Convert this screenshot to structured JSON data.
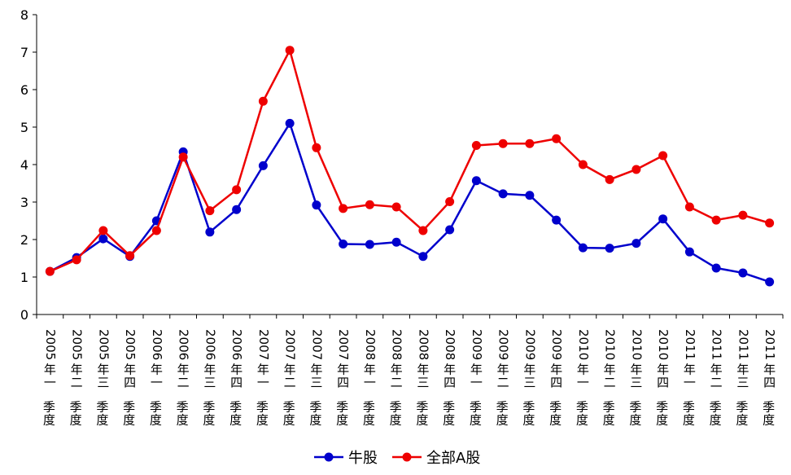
{
  "chart_data": {
    "type": "line",
    "categories": [
      "2005年一季度",
      "2005年二季度",
      "2005年三季度",
      "2005年四季度",
      "2006年一季度",
      "2006年二季度",
      "2006年三季度",
      "2006年四季度",
      "2007年一季度",
      "2007年二季度",
      "2007年三季度",
      "2007年四季度",
      "2008年一季度",
      "2008年二季度",
      "2008年三季度",
      "2008年四季度",
      "2009年一季度",
      "2009年二季度",
      "2009年三季度",
      "2009年四季度",
      "2010年一季度",
      "2010年二季度",
      "2010年三季度",
      "2010年四季度",
      "2011年一季度",
      "2011年二季度",
      "2011年三季度",
      "2011年四季度"
    ],
    "series": [
      {
        "name": "牛股",
        "color": "#0000CC",
        "values": [
          1.15,
          1.52,
          2.02,
          1.55,
          2.5,
          4.34,
          2.2,
          2.8,
          3.97,
          5.1,
          2.92,
          1.88,
          1.87,
          1.93,
          1.55,
          2.26,
          3.57,
          3.22,
          3.18,
          2.52,
          1.78,
          1.77,
          1.9,
          2.55,
          1.67,
          1.24,
          1.11,
          0.87
        ]
      },
      {
        "name": "全部A股",
        "color": "#EE0000",
        "values": [
          1.15,
          1.46,
          2.24,
          1.57,
          2.24,
          4.2,
          2.77,
          3.33,
          5.69,
          7.05,
          4.45,
          2.83,
          2.93,
          2.87,
          2.24,
          3.01,
          4.51,
          4.56,
          4.56,
          4.69,
          4.0,
          3.6,
          3.87,
          4.24,
          2.87,
          2.52,
          2.65,
          2.44
        ]
      }
    ],
    "ylim": [
      0,
      8
    ],
    "yticks": [
      "0",
      "1",
      "2",
      "3",
      "4",
      "5",
      "6",
      "7",
      "8"
    ],
    "grid": false,
    "legend_position": "bottom-center"
  }
}
